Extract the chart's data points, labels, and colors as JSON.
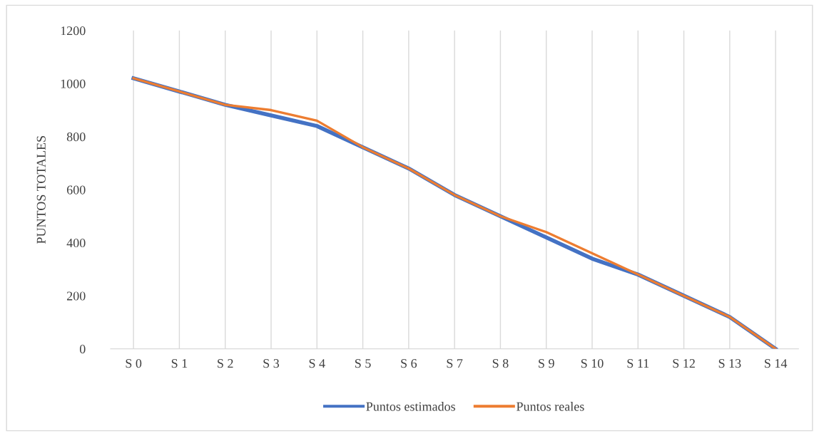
{
  "chart_data": {
    "type": "line",
    "ylabel": "PUNTOS TOTALES",
    "categories": [
      "S 0",
      "S 1",
      "S 2",
      "S 3",
      "S 4",
      "S 5",
      "S 6",
      "S 7",
      "S 8",
      "S 9",
      "S 10",
      "S 11",
      "S 12",
      "S 13",
      "S 14"
    ],
    "series": [
      {
        "name": "Puntos estimados",
        "color": "#4472c4",
        "values": [
          1020,
          970,
          920,
          880,
          840,
          760,
          680,
          580,
          500,
          420,
          340,
          280,
          200,
          120,
          0
        ]
      },
      {
        "name": "Puntos reales",
        "color": "#ed7d31",
        "values": [
          1020,
          970,
          920,
          900,
          860,
          760,
          680,
          580,
          500,
          440,
          360,
          280,
          200,
          120,
          0
        ]
      }
    ],
    "ylim": [
      0,
      1200
    ],
    "yticks": [
      0,
      200,
      400,
      600,
      800,
      1000,
      1200
    ],
    "grid": "x",
    "legend": "bottom",
    "line_style": "solid",
    "marker": "none"
  }
}
